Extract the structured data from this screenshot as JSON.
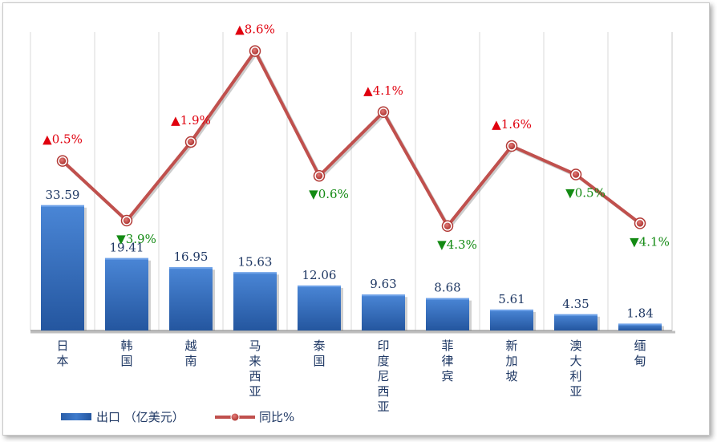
{
  "chart_data": {
    "type": "bar",
    "categories": [
      "日本",
      "韩国",
      "越南",
      "马来西亚",
      "泰国",
      "印度尼西亚",
      "菲律宾",
      "新加坡",
      "澳大利亚",
      "缅甸"
    ],
    "series": [
      {
        "name": "出口（亿美元）",
        "type": "bar",
        "values": [
          33.59,
          19.41,
          16.95,
          15.63,
          12.06,
          9.63,
          8.68,
          5.61,
          4.35,
          1.84
        ],
        "labels": [
          "33.59",
          "19.41",
          "16.95",
          "15.63",
          "12.06",
          "9.63",
          "8.68",
          "5.61",
          "4.35",
          "1.84"
        ],
        "color": "#2e63b3"
      },
      {
        "name": "同比%",
        "type": "line",
        "values": [
          0.5,
          -3.9,
          1.9,
          8.6,
          -0.6,
          4.1,
          -4.3,
          1.6,
          -0.5,
          -4.1
        ],
        "labels": [
          "▲0.5%",
          "▼3.9%",
          "▲1.9%",
          "▲8.6%",
          "▼0.6%",
          "▲4.1%",
          "▼4.3%",
          "▲1.6%",
          "▼0.5%",
          "▼4.1%"
        ],
        "color": "#c0504d"
      }
    ],
    "ylim_bar": [
      0,
      80
    ],
    "ylim_line": [
      -12,
      10
    ],
    "grid": "vertical",
    "legend": "bottom-left",
    "legend_entries": [
      "出口 （亿美元）",
      "同比%"
    ],
    "colors": {
      "up": "#e0000e",
      "down": "#138a13",
      "axis": "#a6a6a6",
      "grid": "#d9d9d9"
    }
  }
}
